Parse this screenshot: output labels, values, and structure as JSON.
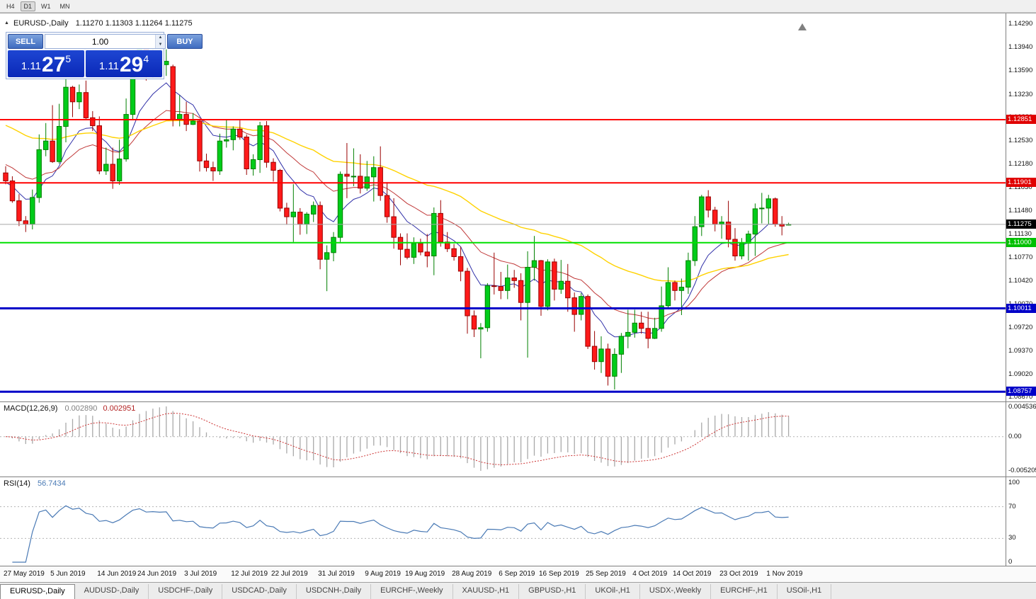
{
  "toolbar": {
    "timeframes": [
      "H4",
      "D1",
      "W1",
      "MN"
    ],
    "active": "D1"
  },
  "chart": {
    "title": "EURUSD-,Daily",
    "ohlc": "1.11270 1.11303 1.11264 1.11275"
  },
  "trade_panel": {
    "sell_label": "SELL",
    "buy_label": "BUY",
    "volume": "1.00",
    "sell_price_prefix": "1.11",
    "sell_price_big": "27",
    "sell_price_sup": "5",
    "buy_price_prefix": "1.11",
    "buy_price_big": "29",
    "buy_price_sup": "4"
  },
  "price_scale": {
    "ticks": [
      "1.14290",
      "1.13940",
      "1.13590",
      "1.13230",
      "1.12880",
      "1.12530",
      "1.12180",
      "1.11830",
      "1.11480",
      "1.11130",
      "1.10770",
      "1.10420",
      "1.10070",
      "1.09720",
      "1.09370",
      "1.09020",
      "1.08670"
    ]
  },
  "hlines": [
    {
      "price": 1.12851,
      "label": "1.12851",
      "color": "#ff0000",
      "badge": "#e00000",
      "width": 2
    },
    {
      "price": 1.11901,
      "label": "1.11901",
      "color": "#ff0000",
      "badge": "#e00000",
      "width": 2
    },
    {
      "price": 1.11,
      "label": "1.11000",
      "color": "#00e000",
      "badge": "#00c000",
      "width": 2
    },
    {
      "price": 1.10011,
      "label": "1.10011",
      "color": "#0000c8",
      "badge": "#0000c8",
      "width": 3
    },
    {
      "price": 1.08757,
      "label": "1.08757",
      "color": "#0000c8",
      "badge": "#0000c8",
      "width": 3
    }
  ],
  "current_price": {
    "value": 1.11275,
    "label": "1.11275"
  },
  "macd": {
    "label": "MACD(12,26,9)",
    "value_main": "0.002890",
    "value_signal": "0.002951",
    "scale": [
      "0.004536",
      "0.00",
      "-0.005205"
    ]
  },
  "rsi": {
    "label": "RSI(14)",
    "value": "56.7434",
    "scale": [
      "100",
      "70",
      "30",
      "0"
    ],
    "levels": [
      70,
      30
    ]
  },
  "x_axis": {
    "labels": [
      {
        "text": "27 May 2019",
        "i": 0
      },
      {
        "text": "5 Jun 2019",
        "i": 7
      },
      {
        "text": "14 Jun 2019",
        "i": 14
      },
      {
        "text": "24 Jun 2019",
        "i": 20
      },
      {
        "text": "3 Jul 2019",
        "i": 27
      },
      {
        "text": "12 Jul 2019",
        "i": 34
      },
      {
        "text": "22 Jul 2019",
        "i": 40
      },
      {
        "text": "31 Jul 2019",
        "i": 47
      },
      {
        "text": "9 Aug 2019",
        "i": 54
      },
      {
        "text": "19 Aug 2019",
        "i": 60
      },
      {
        "text": "28 Aug 2019",
        "i": 67
      },
      {
        "text": "6 Sep 2019",
        "i": 74
      },
      {
        "text": "16 Sep 2019",
        "i": 80
      },
      {
        "text": "25 Sep 2019",
        "i": 87
      },
      {
        "text": "4 Oct 2019",
        "i": 94
      },
      {
        "text": "14 Oct 2019",
        "i": 100
      },
      {
        "text": "23 Oct 2019",
        "i": 107
      },
      {
        "text": "1 Nov 2019",
        "i": 114
      }
    ]
  },
  "tabs": [
    {
      "label": "EURUSD-,Daily",
      "active": true
    },
    {
      "label": "AUDUSD-,Daily",
      "active": false
    },
    {
      "label": "USDCHF-,Daily",
      "active": false
    },
    {
      "label": "USDCAD-,Daily",
      "active": false
    },
    {
      "label": "USDCNH-,Daily",
      "active": false
    },
    {
      "label": "EURCHF-,Weekly",
      "active": false
    },
    {
      "label": "XAUUSD-,H1",
      "active": false
    },
    {
      "label": "GBPUSD-,H1",
      "active": false
    },
    {
      "label": "UKOil-,H1",
      "active": false
    },
    {
      "label": "USDX-,Weekly",
      "active": false
    },
    {
      "label": "EURCHF-,H1",
      "active": false
    },
    {
      "label": "USOil-,H1",
      "active": false
    }
  ],
  "chart_data": {
    "type": "candlestick",
    "symbol": "EURUSD",
    "timeframe": "Daily",
    "price_range": [
      1.0861,
      1.1445
    ],
    "up_color": "#00cc1a",
    "up_border": "#008000",
    "down_color": "#ff1a1a",
    "down_border": "#990000",
    "moving_averages": [
      {
        "period": 9,
        "color": "#3030a8",
        "width": 1,
        "seed": 1.119
      },
      {
        "period": 21,
        "color": "#c03838",
        "width": 1,
        "seed": 1.122
      },
      {
        "period": 50,
        "color": "#ffd200",
        "width": 1.4,
        "seed": 1.128
      }
    ],
    "candles": [
      [
        1.1205,
        1.1215,
        1.1188,
        1.1193
      ],
      [
        1.1193,
        1.12,
        1.116,
        1.1163
      ],
      [
        1.1163,
        1.1173,
        1.1125,
        1.1133
      ],
      [
        1.1133,
        1.114,
        1.1116,
        1.1128
      ],
      [
        1.1128,
        1.118,
        1.112,
        1.1168
      ],
      [
        1.1168,
        1.1263,
        1.116,
        1.124
      ],
      [
        1.124,
        1.128,
        1.123,
        1.1253
      ],
      [
        1.1253,
        1.1307,
        1.122,
        1.1222
      ],
      [
        1.1222,
        1.1309,
        1.1219,
        1.1275
      ],
      [
        1.1275,
        1.1348,
        1.1251,
        1.1334
      ],
      [
        1.1334,
        1.1336,
        1.1289,
        1.1312
      ],
      [
        1.1312,
        1.1338,
        1.1301,
        1.1326
      ],
      [
        1.1326,
        1.1344,
        1.1285,
        1.1288
      ],
      [
        1.1288,
        1.1298,
        1.1268,
        1.1276
      ],
      [
        1.1276,
        1.129,
        1.1203,
        1.1208
      ],
      [
        1.1208,
        1.1243,
        1.1202,
        1.1218
      ],
      [
        1.1218,
        1.1243,
        1.1181,
        1.1193
      ],
      [
        1.1193,
        1.1255,
        1.1187,
        1.1226
      ],
      [
        1.1226,
        1.1317,
        1.1222,
        1.1293
      ],
      [
        1.1293,
        1.1378,
        1.1285,
        1.1369
      ],
      [
        1.1369,
        1.1402,
        1.1362,
        1.1398
      ],
      [
        1.1398,
        1.1412,
        1.1344,
        1.1366
      ],
      [
        1.1366,
        1.1391,
        1.1348,
        1.1373
      ],
      [
        1.1373,
        1.1389,
        1.1357,
        1.1368
      ],
      [
        1.1368,
        1.1391,
        1.1351,
        1.1373
      ],
      [
        1.1365,
        1.1368,
        1.1275,
        1.1285
      ],
      [
        1.1285,
        1.1322,
        1.1275,
        1.1293
      ],
      [
        1.1293,
        1.1312,
        1.1268,
        1.1278
      ],
      [
        1.1278,
        1.1295,
        1.1277,
        1.1283
      ],
      [
        1.1283,
        1.1286,
        1.1207,
        1.1223
      ],
      [
        1.1223,
        1.1234,
        1.1207,
        1.1213
      ],
      [
        1.1213,
        1.1222,
        1.1193,
        1.1208
      ],
      [
        1.1208,
        1.1264,
        1.1202,
        1.1253
      ],
      [
        1.1253,
        1.1285,
        1.1243,
        1.1255
      ],
      [
        1.1255,
        1.1275,
        1.1239,
        1.1271
      ],
      [
        1.1271,
        1.1284,
        1.1255,
        1.1259
      ],
      [
        1.1259,
        1.1263,
        1.1202,
        1.1211
      ],
      [
        1.1211,
        1.1233,
        1.1201,
        1.1225
      ],
      [
        1.1225,
        1.1282,
        1.1205,
        1.1276
      ],
      [
        1.1276,
        1.1283,
        1.1213,
        1.1221
      ],
      [
        1.1221,
        1.1227,
        1.1192,
        1.1209
      ],
      [
        1.1209,
        1.1211,
        1.1147,
        1.1152
      ],
      [
        1.1152,
        1.116,
        1.1127,
        1.1139
      ],
      [
        1.1139,
        1.1188,
        1.1101,
        1.1146
      ],
      [
        1.1146,
        1.1152,
        1.1112,
        1.1128
      ],
      [
        1.1128,
        1.1146,
        1.1113,
        1.1143
      ],
      [
        1.1143,
        1.1162,
        1.1131,
        1.1156
      ],
      [
        1.1156,
        1.1162,
        1.106,
        1.1075
      ],
      [
        1.1075,
        1.1096,
        1.1027,
        1.1085
      ],
      [
        1.1085,
        1.1116,
        1.1072,
        1.1108
      ],
      [
        1.1108,
        1.1207,
        1.1101,
        1.1203
      ],
      [
        1.1203,
        1.125,
        1.1167,
        1.12
      ],
      [
        1.12,
        1.1242,
        1.1185,
        1.12
      ],
      [
        1.12,
        1.1233,
        1.1174,
        1.1182
      ],
      [
        1.1182,
        1.1223,
        1.1178,
        1.1199
      ],
      [
        1.1199,
        1.123,
        1.1162,
        1.1213
      ],
      [
        1.1213,
        1.1245,
        1.1163,
        1.1171
      ],
      [
        1.1171,
        1.1191,
        1.113,
        1.1139
      ],
      [
        1.1139,
        1.1167,
        1.1091,
        1.1108
      ],
      [
        1.1108,
        1.1114,
        1.1066,
        1.109
      ],
      [
        1.109,
        1.1114,
        1.1075,
        1.1078
      ],
      [
        1.1078,
        1.1108,
        1.1068,
        1.1099
      ],
      [
        1.1099,
        1.1106,
        1.1081,
        1.1086
      ],
      [
        1.1086,
        1.1113,
        1.1063,
        1.108
      ],
      [
        1.108,
        1.1153,
        1.1051,
        1.1144
      ],
      [
        1.1144,
        1.1164,
        1.1094,
        1.1101
      ],
      [
        1.1101,
        1.1116,
        1.1086,
        1.1091
      ],
      [
        1.1091,
        1.1098,
        1.1073,
        1.1079
      ],
      [
        1.1079,
        1.1094,
        1.1042,
        1.1057
      ],
      [
        1.1057,
        1.1062,
        1.0963,
        1.099
      ],
      [
        1.099,
        1.0998,
        1.0958,
        1.097
      ],
      [
        1.097,
        1.0979,
        1.0926,
        1.0972
      ],
      [
        1.0972,
        1.1039,
        1.0966,
        1.1035
      ],
      [
        1.1035,
        1.1085,
        1.1022,
        1.1034
      ],
      [
        1.1034,
        1.1056,
        1.1015,
        1.1028
      ],
      [
        1.1028,
        1.1067,
        1.1015,
        1.1047
      ],
      [
        1.1047,
        1.1059,
        1.1032,
        1.1043
      ],
      [
        1.1043,
        1.1054,
        1.0983,
        1.101
      ],
      [
        1.101,
        1.1087,
        1.0927,
        1.1063
      ],
      [
        1.1063,
        1.111,
        1.1043,
        1.1073
      ],
      [
        1.1073,
        1.1074,
        1.099,
        1.1004
      ],
      [
        1.1004,
        1.1075,
        1.0998,
        1.1071
      ],
      [
        1.1071,
        1.1076,
        1.1013,
        1.103
      ],
      [
        1.103,
        1.1074,
        1.1023,
        1.1042
      ],
      [
        1.1042,
        1.1068,
        1.0996,
        1.1017
      ],
      [
        1.1017,
        1.1025,
        1.0966,
        1.0992
      ],
      [
        1.0992,
        1.1024,
        1.0983,
        1.1019
      ],
      [
        1.1019,
        1.1022,
        1.094,
        1.0944
      ],
      [
        1.0944,
        1.0967,
        1.0909,
        1.0921
      ],
      [
        1.0921,
        1.0959,
        1.0904,
        1.094
      ],
      [
        1.094,
        1.0948,
        1.0885,
        1.0899
      ],
      [
        1.0899,
        1.0941,
        1.0879,
        1.0932
      ],
      [
        1.0932,
        1.0964,
        1.0904,
        1.0959
      ],
      [
        1.0959,
        1.0999,
        1.0941,
        1.0965
      ],
      [
        1.0965,
        1.0999,
        1.0957,
        1.0979
      ],
      [
        1.0979,
        1.0996,
        1.0963,
        1.0971
      ],
      [
        1.0971,
        1.0996,
        1.0941,
        1.0956
      ],
      [
        1.0956,
        1.0987,
        1.0955,
        1.0971
      ],
      [
        1.0971,
        1.1034,
        1.0966,
        1.1005
      ],
      [
        1.1005,
        1.1063,
        1.1002,
        1.104
      ],
      [
        1.104,
        1.1043,
        1.1013,
        1.1028
      ],
      [
        1.1028,
        1.1046,
        1.0991,
        1.1033
      ],
      [
        1.1033,
        1.1085,
        1.1023,
        1.1073
      ],
      [
        1.1073,
        1.114,
        1.1065,
        1.1124
      ],
      [
        1.1124,
        1.1172,
        1.111,
        1.1169
      ],
      [
        1.1169,
        1.1179,
        1.1138,
        1.1149
      ],
      [
        1.1149,
        1.1154,
        1.1117,
        1.1128
      ],
      [
        1.1128,
        1.114,
        1.1106,
        1.1131
      ],
      [
        1.1131,
        1.1163,
        1.1093,
        1.1105
      ],
      [
        1.1105,
        1.1122,
        1.1073,
        1.108
      ],
      [
        1.108,
        1.1107,
        1.1075,
        1.1099
      ],
      [
        1.1099,
        1.1118,
        1.1073,
        1.1113
      ],
      [
        1.1113,
        1.1159,
        1.108,
        1.1151
      ],
      [
        1.1151,
        1.1175,
        1.1129,
        1.1152
      ],
      [
        1.1152,
        1.1172,
        1.1128,
        1.1166
      ],
      [
        1.1166,
        1.1168,
        1.1124,
        1.1128
      ],
      [
        1.1128,
        1.114,
        1.1111,
        1.1125
      ],
      [
        1.1127,
        1.113,
        1.1126,
        1.11275
      ]
    ]
  }
}
